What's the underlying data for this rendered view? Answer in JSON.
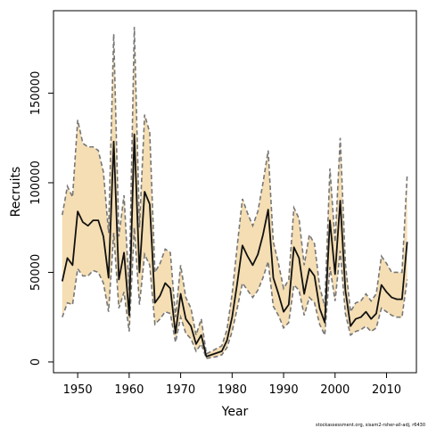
{
  "chart_data": {
    "type": "line",
    "title": "",
    "xlabel": "Year",
    "ylabel": "Recruits",
    "xlim": [
      1945.3,
      2015.8
    ],
    "ylim": [
      -6000,
      196000
    ],
    "xticks": [
      1950,
      1960,
      1970,
      1980,
      1990,
      2000,
      2010
    ],
    "xtick_labels": [
      "1950",
      "1960",
      "1970",
      "1980",
      "1990",
      "2000",
      "2010"
    ],
    "yticks": [
      0,
      50000,
      100000,
      150000
    ],
    "ytick_labels": [
      "0",
      "50000",
      "100000",
      "150000"
    ],
    "grid": false,
    "legend": "none",
    "colors": {
      "band": "#f5deb3",
      "bounds": "#777777",
      "estimate": "#111111",
      "frame": "#000000"
    },
    "series": [
      {
        "role": "estimate",
        "x": [
          1947,
          1948,
          1949,
          1950,
          1951,
          1952,
          1953,
          1954,
          1955,
          1956,
          1957,
          1958,
          1959,
          1960,
          1961,
          1962,
          1963,
          1964,
          1965,
          1966,
          1967,
          1968,
          1969,
          1970,
          1971,
          1972,
          1973,
          1974,
          1975,
          1976,
          1977,
          1978,
          1979,
          1980,
          1981,
          1982,
          1983,
          1984,
          1985,
          1986,
          1987,
          1988,
          1989,
          1990,
          1991,
          1992,
          1993,
          1994,
          1995,
          1996,
          1997,
          1998,
          1999,
          2000,
          2001,
          2002,
          2003,
          2004,
          2005,
          2006,
          2007,
          2008,
          2009,
          2010,
          2011,
          2012,
          2013,
          2014
        ],
        "y": [
          45000,
          58000,
          54000,
          84000,
          78000,
          76000,
          79000,
          79000,
          70000,
          47000,
          123000,
          46000,
          61000,
          26000,
          127000,
          50000,
          95000,
          88000,
          33000,
          37000,
          44000,
          41000,
          16000,
          38000,
          24000,
          20000,
          10000,
          15000,
          3000,
          4000,
          5000,
          6000,
          12000,
          25000,
          44000,
          65000,
          59000,
          54000,
          60000,
          71000,
          85000,
          47000,
          38000,
          28000,
          32000,
          64000,
          58000,
          38000,
          52000,
          48000,
          30000,
          22000,
          79000,
          49000,
          90000,
          40000,
          20000,
          24000,
          25000,
          28000,
          24000,
          27000,
          43000,
          39000,
          36000,
          35000,
          35000,
          67000
        ]
      },
      {
        "role": "lower_bound",
        "x": [
          1947,
          1948,
          1949,
          1950,
          1951,
          1952,
          1953,
          1954,
          1955,
          1956,
          1957,
          1958,
          1959,
          1960,
          1961,
          1962,
          1963,
          1964,
          1965,
          1966,
          1967,
          1968,
          1969,
          1970,
          1971,
          1972,
          1973,
          1974,
          1975,
          1976,
          1977,
          1978,
          1979,
          1980,
          1981,
          1982,
          1983,
          1984,
          1985,
          1986,
          1987,
          1988,
          1989,
          1990,
          1991,
          1992,
          1993,
          1994,
          1995,
          1996,
          1997,
          1998,
          1999,
          2000,
          2001,
          2002,
          2003,
          2004,
          2005,
          2006,
          2007,
          2008,
          2009,
          2010,
          2011,
          2012,
          2013,
          2014
        ],
        "y": [
          25000,
          33000,
          32000,
          52000,
          48000,
          48000,
          51000,
          50000,
          44000,
          28000,
          72000,
          30000,
          39000,
          17000,
          75000,
          32000,
          60000,
          54000,
          21000,
          24000,
          28000,
          27000,
          11000,
          25000,
          16000,
          13000,
          6000,
          10000,
          2000,
          2500,
          3000,
          4000,
          8000,
          17000,
          30000,
          44000,
          40000,
          36000,
          40000,
          47000,
          56000,
          31000,
          26000,
          19000,
          22000,
          43000,
          40000,
          26000,
          36000,
          33000,
          21000,
          15000,
          53000,
          34000,
          62000,
          27000,
          15000,
          17000,
          18000,
          20000,
          17000,
          19000,
          30000,
          28000,
          26000,
          25000,
          25000,
          46000
        ]
      },
      {
        "role": "upper_bound",
        "x": [
          1947,
          1948,
          1949,
          1950,
          1951,
          1952,
          1953,
          1954,
          1955,
          1956,
          1957,
          1958,
          1959,
          1960,
          1961,
          1962,
          1963,
          1964,
          1965,
          1966,
          1967,
          1968,
          1969,
          1970,
          1971,
          1972,
          1973,
          1974,
          1975,
          1976,
          1977,
          1978,
          1979,
          1980,
          1981,
          1982,
          1983,
          1984,
          1985,
          1986,
          1987,
          1988,
          1989,
          1990,
          1991,
          1992,
          1993,
          1994,
          1995,
          1996,
          1997,
          1998,
          1999,
          2000,
          2001,
          2002,
          2003,
          2004,
          2005,
          2006,
          2007,
          2008,
          2009,
          2010,
          2011,
          2012,
          2013,
          2014
        ],
        "y": [
          82000,
          98000,
          92000,
          135000,
          122000,
          120000,
          120000,
          118000,
          106000,
          72000,
          183000,
          70000,
          93000,
          40000,
          187000,
          75000,
          138000,
          128000,
          50000,
          55000,
          63000,
          61000,
          25000,
          54000,
          36000,
          30000,
          15000,
          24000,
          4500,
          6000,
          7500,
          9000,
          18000,
          38000,
          65000,
          91000,
          83000,
          76000,
          84000,
          100000,
          118000,
          67000,
          55000,
          41000,
          46000,
          86000,
          80000,
          54000,
          71000,
          66000,
          42000,
          31000,
          108000,
          67000,
          125000,
          55000,
          28000,
          33000,
          34000,
          38000,
          34000,
          38000,
          59000,
          55000,
          50000,
          50000,
          50000,
          104000
        ]
      }
    ]
  },
  "caption": "stockassessment.org, sisam2-rsher-all-adj, r6430"
}
